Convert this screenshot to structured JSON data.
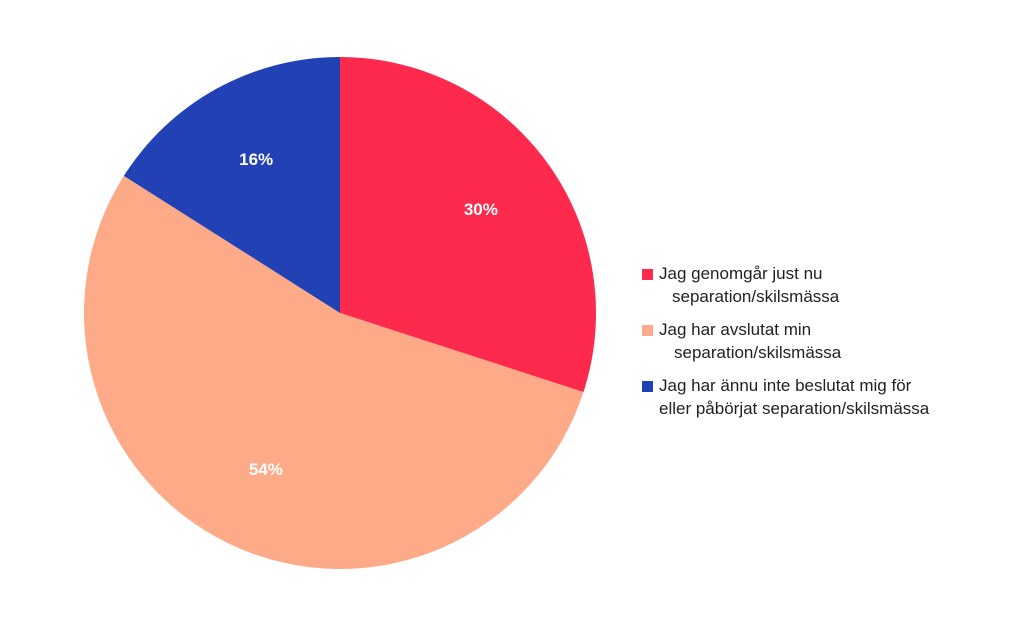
{
  "chart_data": {
    "type": "pie",
    "start_angle_deg": 0,
    "direction": "clockwise",
    "slices": [
      {
        "label": "Jag genomgår just nu separation/skilsmässa",
        "value": 30,
        "value_label": "30%",
        "color": "#fd2a4e"
      },
      {
        "label": "Jag har avslutat min separation/skilsmässa",
        "value": 54,
        "value_label": "54%",
        "color": "#fdaa88"
      },
      {
        "label": "Jag har ännu inte beslutat mig för eller påbörjat separation/skilsmässa",
        "value": 16,
        "value_label": "16%",
        "color": "#2141b5"
      }
    ],
    "legend": {
      "placement": "right",
      "entries": [
        {
          "line1": "Jag genomgår just nu",
          "line2": "separation/skilsmässa",
          "color": "#fd2a4e"
        },
        {
          "line1": "Jag har avslutat min",
          "line2": "separation/skilsmässa",
          "color": "#fdaa88"
        },
        {
          "line1": "Jag har ännu inte beslutat mig för",
          "line2": "eller påbörjat separation/skilsmässa",
          "color": "#2141b5"
        }
      ]
    }
  }
}
